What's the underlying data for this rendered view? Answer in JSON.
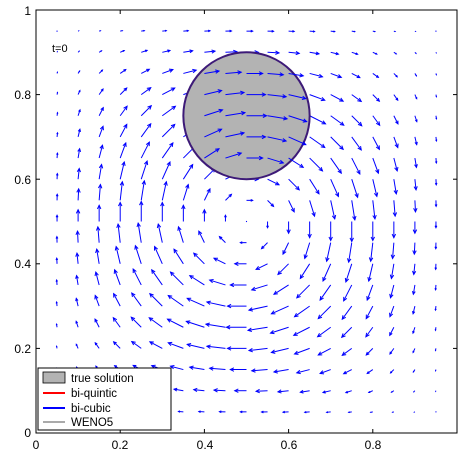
{
  "chart_data": {
    "type": "vector-field",
    "title": "",
    "xlabel": "",
    "ylabel": "",
    "xlim": [
      0,
      1
    ],
    "ylim": [
      0,
      1
    ],
    "xticks": [
      "0",
      "0.2",
      "0.4",
      "0.6",
      "0.8"
    ],
    "yticks": [
      "0",
      "0.2",
      "0.4",
      "0.6",
      "0.8",
      "1"
    ],
    "grid": false,
    "annotation": "t=0",
    "disk": {
      "center": [
        0.5,
        0.75
      ],
      "radius": 0.15,
      "fill": "#b3b3b3",
      "edge": "#3d1a78"
    },
    "velocity_field": {
      "description": "rotational vortex field sampled on a regular grid",
      "grid_spacing": 0.05,
      "x_range": [
        0.05,
        0.95
      ],
      "y_range": [
        0.05,
        0.95
      ],
      "arrow_color": "#0000ff"
    },
    "legend": {
      "position": "bottom-left",
      "entries": [
        {
          "label": "true solution",
          "style": "patch",
          "color": "#b3b3b3"
        },
        {
          "label": "bi-quintic",
          "style": "line",
          "color": "#ff0000"
        },
        {
          "label": "bi-cubic",
          "style": "line",
          "color": "#0000ff"
        },
        {
          "label": "WENO5",
          "style": "line",
          "color": "#555555"
        }
      ]
    }
  }
}
